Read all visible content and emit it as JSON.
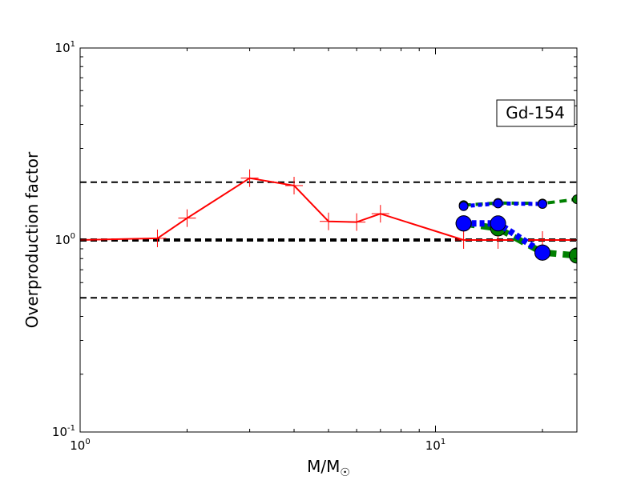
{
  "chart_data": {
    "type": "line",
    "xscale": "log",
    "yscale": "log",
    "xlim": [
      1,
      25
    ],
    "ylim": [
      0.1,
      10
    ],
    "xlabel": "M/M",
    "xlabel_symbol": "☉",
    "ylabel": "Overproduction factor",
    "x_ticks": [
      {
        "value": 1,
        "base": "10",
        "exp": "0"
      },
      {
        "value": 10,
        "base": "10",
        "exp": "1"
      }
    ],
    "y_ticks": [
      {
        "value": 0.1,
        "base": "10",
        "exp": "-1"
      },
      {
        "value": 1,
        "base": "10",
        "exp": "0"
      },
      {
        "value": 10,
        "base": "10",
        "exp": "1"
      }
    ],
    "annotation": "Gd-154",
    "reference_lines": [
      {
        "y": 2.0,
        "style": "dashed",
        "color": "#000000",
        "width": 2
      },
      {
        "y": 1.0,
        "style": "dashed",
        "color": "#000000",
        "width": 4
      },
      {
        "y": 0.5,
        "style": "dashed",
        "color": "#000000",
        "width": 2
      }
    ],
    "series": [
      {
        "color": "#ff0000",
        "style": "solid",
        "marker": "plus",
        "x": [
          1.0,
          1.65,
          2.0,
          3.0,
          4.0,
          5.0,
          6.0,
          7.0,
          12.0,
          15.0,
          20.0,
          25.0
        ],
        "y": [
          1.0,
          1.02,
          1.3,
          2.1,
          1.92,
          1.25,
          1.24,
          1.37,
          1.0,
          1.0,
          1.0,
          1.0
        ]
      },
      {
        "color": "#008000",
        "style": "dashed",
        "marker": "circle",
        "marker_size": "small",
        "x": [
          12.0,
          15.0,
          20.0,
          25.0
        ],
        "y": [
          1.52,
          1.56,
          1.55,
          1.63
        ]
      },
      {
        "color": "#008000",
        "style": "dashed",
        "marker": "circle",
        "marker_size": "large",
        "x": [
          12.0,
          15.0,
          20.0,
          25.0
        ],
        "y": [
          1.22,
          1.15,
          0.86,
          0.83
        ]
      },
      {
        "color": "#0000ff",
        "style": "dotted",
        "marker": "circle",
        "marker_size": "small",
        "x": [
          12.0,
          15.0,
          20.0
        ],
        "y": [
          1.5,
          1.55,
          1.54
        ]
      },
      {
        "color": "#0000ff",
        "style": "dotted",
        "marker": "circle",
        "marker_size": "large",
        "x": [
          12.0,
          15.0,
          20.0
        ],
        "y": [
          1.22,
          1.22,
          0.86
        ]
      }
    ]
  }
}
